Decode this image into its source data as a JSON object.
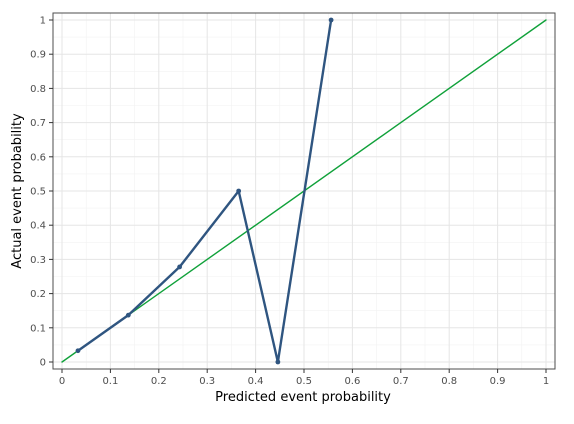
{
  "chart_data": {
    "type": "line",
    "title": "",
    "xlabel": "Predicted event probability",
    "ylabel": "Actual event probability",
    "xlim": [
      0,
      1
    ],
    "ylim": [
      0,
      1
    ],
    "xticks": [
      "0",
      "0.1",
      "0.2",
      "0.3",
      "0.4",
      "0.5",
      "0.6",
      "0.7",
      "0.8",
      "0.9",
      "1"
    ],
    "yticks": [
      "0",
      "0.1",
      "0.2",
      "0.3",
      "0.4",
      "0.5",
      "0.6",
      "0.7",
      "0.8",
      "0.9",
      "1"
    ],
    "grid": true,
    "legend": "none",
    "series": [
      {
        "x": [
          0.033,
          0.137,
          0.243,
          0.365,
          0.446,
          0.556
        ],
        "y": [
          0.033,
          0.137,
          0.278,
          0.5,
          0.0,
          1.0
        ],
        "color": "#2f5580",
        "markers": true
      },
      {
        "x": [
          0,
          1
        ],
        "y": [
          0,
          1
        ],
        "color": "#10a13a",
        "markers": false
      }
    ],
    "colors": {
      "panel_border": "#4d4d4d",
      "grid_major": "#e5e5e5",
      "grid_minor": "#f2f2f2"
    }
  }
}
